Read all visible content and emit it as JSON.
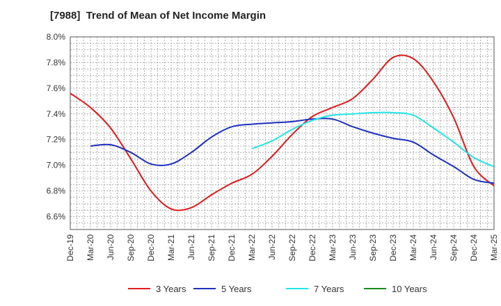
{
  "chart_data": {
    "type": "line",
    "title": "[7988]  Trend of Mean of Net Income Margin",
    "xlabel": "",
    "ylabel": "",
    "x_ticks": [
      "Dec-19",
      "Mar-20",
      "Jun-20",
      "Sep-20",
      "Dec-20",
      "Mar-21",
      "Jun-21",
      "Sep-21",
      "Dec-21",
      "Mar-22",
      "Jun-22",
      "Sep-22",
      "Dec-22",
      "Mar-23",
      "Jun-23",
      "Sep-23",
      "Dec-23",
      "Mar-24",
      "Jun-24",
      "Sep-24",
      "Dec-24",
      "Mar-25"
    ],
    "y_ticks": [
      "6.6%",
      "6.8%",
      "7.0%",
      "7.2%",
      "7.4%",
      "7.6%",
      "7.8%",
      "8.0%"
    ],
    "ylim": [
      6.5,
      8.0
    ],
    "grid": true,
    "legend_position": "bottom",
    "series": [
      {
        "name": "3 Years",
        "color": "#e31a1c",
        "values": [
          7.56,
          7.45,
          7.29,
          7.05,
          6.8,
          6.66,
          6.67,
          6.77,
          6.86,
          6.93,
          7.07,
          7.24,
          7.38,
          7.45,
          7.52,
          7.67,
          7.84,
          7.83,
          7.65,
          7.37,
          6.99,
          6.84
        ]
      },
      {
        "name": "5 Years",
        "color": "#1f2fbf",
        "values": [
          null,
          7.15,
          7.16,
          7.1,
          7.01,
          7.01,
          7.1,
          7.22,
          7.3,
          7.32,
          7.33,
          7.34,
          7.36,
          7.36,
          7.3,
          7.25,
          7.21,
          7.18,
          7.08,
          6.99,
          6.89,
          6.86
        ]
      },
      {
        "name": "7 Years",
        "color": "#22e5e5",
        "values": [
          null,
          null,
          null,
          null,
          null,
          null,
          null,
          null,
          null,
          7.13,
          7.19,
          7.28,
          7.35,
          7.39,
          7.4,
          7.41,
          7.41,
          7.39,
          7.29,
          7.18,
          7.06,
          6.99
        ]
      },
      {
        "name": "10 Years",
        "color": "#1a8a1a",
        "values": []
      }
    ]
  }
}
